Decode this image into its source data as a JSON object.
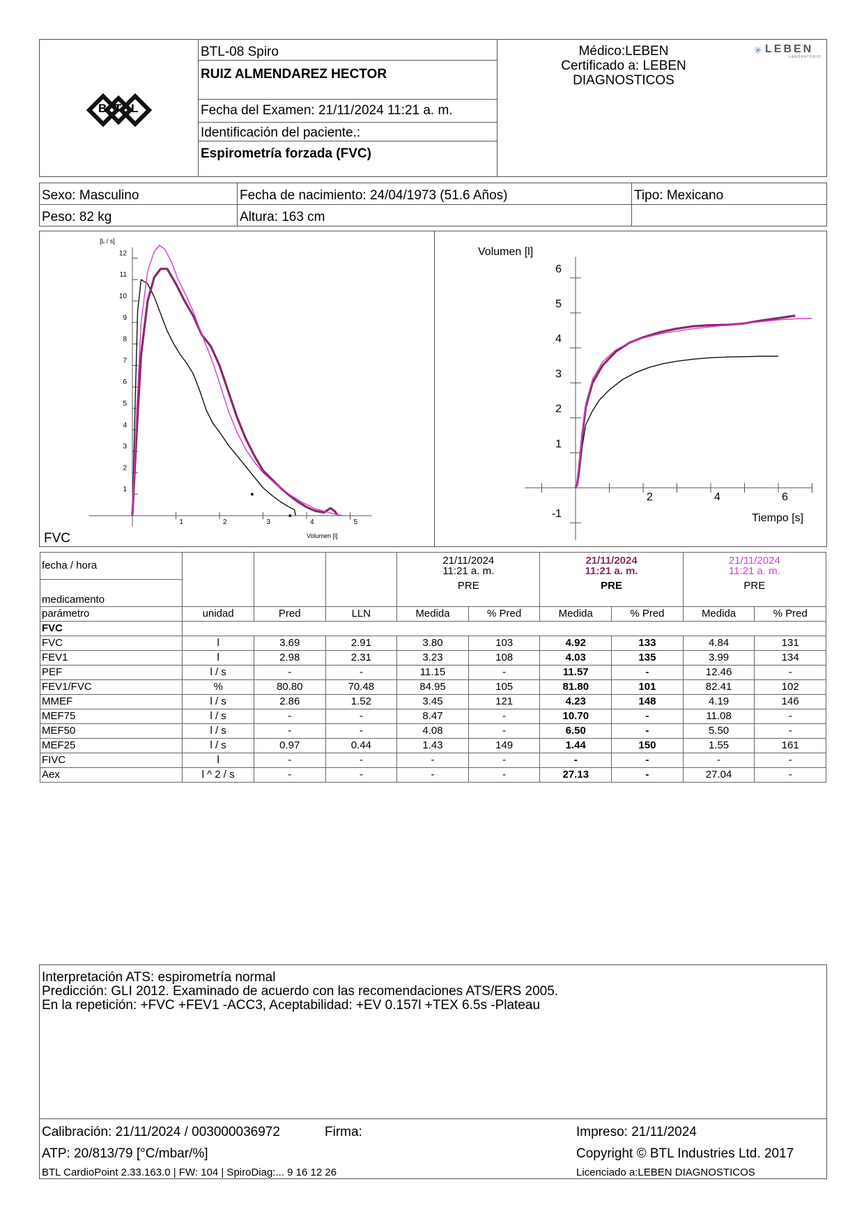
{
  "header": {
    "device": "BTL-08 Spiro",
    "patient_name": "RUIZ ALMENDAREZ HECTOR",
    "exam_date": "Fecha del Examen:  21/11/2024 11:21 a. m.",
    "patient_id": "Identificación del paciente.:",
    "test_type": "Espirometría forzada (FVC)",
    "doctor_line1": "Médico:LEBEN",
    "doctor_line2": "Certificado a: LEBEN",
    "doctor_line3": "DIAGNOSTICOS",
    "brand_logo_text": "LEBEN",
    "brand_logo_sub": "LABORATORIO",
    "logo_letters": [
      "B",
      "T",
      "L"
    ]
  },
  "patient": {
    "sex": "Sexo: Masculino",
    "dob": "Fecha de nacimiento: 24/04/1973 (51.6 Años)",
    "type": "Tipo: Mexicano",
    "weight": "Peso: 82 kg",
    "height": "Altura: 163 cm"
  },
  "colors": {
    "trial1": "#111111",
    "trial2": "#8a2a64",
    "trial3": "#d83cd0"
  },
  "chart_data": [
    {
      "type": "line",
      "title": "FVC",
      "ylabel": "[L / s]",
      "xlabel": "Volumen [l]",
      "xlim": [
        -1,
        5.5
      ],
      "ylim": [
        -0.5,
        12.5
      ],
      "xticks": [
        1,
        2,
        3,
        4,
        5
      ],
      "yticks": [
        1,
        2,
        3,
        4,
        5,
        6,
        7,
        8,
        9,
        10,
        11,
        12
      ],
      "series": [
        {
          "color": "#111111",
          "x": [
            0,
            0.06,
            0.12,
            0.2,
            0.35,
            0.5,
            0.65,
            0.8,
            0.95,
            1.1,
            1.25,
            1.4,
            1.55,
            1.7,
            1.85,
            2.0,
            2.2,
            2.4,
            2.6,
            2.8,
            3.0,
            3.2,
            3.4,
            3.6,
            3.72,
            3.75
          ],
          "y": [
            0,
            5,
            9.5,
            11,
            10.8,
            10.2,
            9.4,
            8.6,
            8.0,
            7.5,
            7.1,
            6.6,
            5.8,
            4.9,
            4.3,
            3.9,
            3.3,
            2.8,
            2.3,
            1.8,
            1.3,
            0.95,
            0.65,
            0.4,
            0.28,
            0.0
          ]
        },
        {
          "color": "#8a2a64",
          "x": [
            0,
            0.1,
            0.2,
            0.35,
            0.5,
            0.65,
            0.8,
            1.0,
            1.2,
            1.4,
            1.6,
            1.8,
            2.0,
            2.2,
            2.4,
            2.6,
            2.8,
            3.0,
            3.2,
            3.4,
            3.6,
            3.8,
            4.0,
            4.2,
            4.4,
            4.55,
            4.65,
            4.7
          ],
          "y": [
            0,
            4,
            7.5,
            10,
            11.1,
            11.5,
            11.5,
            10.8,
            10.0,
            9.3,
            8.4,
            7.9,
            7.0,
            5.8,
            4.6,
            3.6,
            2.8,
            2.1,
            1.7,
            1.3,
            0.95,
            0.65,
            0.4,
            0.22,
            0.15,
            0.35,
            0.2,
            0.05
          ]
        },
        {
          "color": "#d83cd0",
          "x": [
            0,
            0.1,
            0.2,
            0.35,
            0.5,
            0.62,
            0.75,
            0.9,
            1.05,
            1.2,
            1.4,
            1.6,
            1.8,
            2.0,
            2.2,
            2.4,
            2.6,
            2.8,
            3.0,
            3.3,
            3.6,
            3.9,
            4.2,
            4.5,
            4.7,
            4.84
          ],
          "y": [
            0,
            5,
            9.0,
            11.4,
            12.3,
            12.6,
            12.4,
            11.8,
            11.0,
            10.4,
            9.5,
            8.4,
            7.4,
            6.2,
            4.9,
            3.9,
            3.1,
            2.5,
            2.0,
            1.45,
            1.0,
            0.62,
            0.32,
            0.15,
            0.05,
            0.0
          ]
        }
      ]
    },
    {
      "type": "line",
      "ylabel": "Volumen [l]",
      "xlabel": "Tiempo [s]",
      "xlim": [
        -1.5,
        7
      ],
      "ylim": [
        -1.5,
        7
      ],
      "xticks": [
        2,
        4,
        6
      ],
      "yticks": [
        -1,
        1,
        2,
        3,
        4,
        5,
        6
      ],
      "series": [
        {
          "color": "#111111",
          "x": [
            0,
            0.1,
            0.2,
            0.3,
            0.5,
            0.7,
            1.0,
            1.4,
            1.8,
            2.2,
            2.6,
            3.0,
            3.5,
            4.0,
            4.5,
            5.0,
            5.5,
            6.0
          ],
          "y": [
            0,
            0.3,
            1.2,
            1.8,
            2.2,
            2.5,
            2.8,
            3.1,
            3.3,
            3.45,
            3.55,
            3.62,
            3.68,
            3.72,
            3.74,
            3.75,
            3.76,
            3.76
          ]
        },
        {
          "color": "#8a2a64",
          "x": [
            0,
            0.05,
            0.1,
            0.2,
            0.3,
            0.5,
            0.8,
            1.2,
            1.6,
            2.0,
            2.5,
            3.0,
            3.5,
            4.0,
            4.5,
            5.0,
            5.5,
            6.0,
            6.5
          ],
          "y": [
            0,
            0.1,
            0.5,
            1.5,
            2.3,
            3.0,
            3.5,
            3.9,
            4.15,
            4.3,
            4.45,
            4.55,
            4.62,
            4.65,
            4.66,
            4.7,
            4.78,
            4.85,
            4.92
          ]
        },
        {
          "color": "#d83cd0",
          "x": [
            0,
            0.05,
            0.1,
            0.2,
            0.3,
            0.5,
            0.8,
            1.2,
            1.6,
            2.0,
            2.5,
            3.0,
            3.5,
            4.0,
            4.5,
            5.0,
            5.5,
            6.0,
            6.5,
            7.0
          ],
          "y": [
            0,
            0.1,
            0.6,
            1.6,
            2.4,
            3.1,
            3.6,
            3.95,
            4.15,
            4.28,
            4.4,
            4.48,
            4.55,
            4.6,
            4.65,
            4.7,
            4.75,
            4.8,
            4.83,
            4.84
          ]
        }
      ]
    }
  ],
  "results": {
    "label_date": "fecha / hora",
    "label_med": "medicamento",
    "trials": [
      {
        "date": "21/11/2024",
        "time": "11:21 a. m.",
        "med": "PRE"
      },
      {
        "date": "21/11/2024",
        "time": "11:21 a. m.",
        "med": "PRE"
      },
      {
        "date": "21/11/2024",
        "time": "11:21 a. m.",
        "med": "PRE"
      }
    ],
    "columns": [
      "parámetro",
      "unidad",
      "Pred",
      "LLN",
      "Medida",
      "% Pred",
      "Medida",
      "% Pred",
      "Medida",
      "% Pred"
    ],
    "section": "FVC",
    "rows": [
      [
        "FVC",
        "l",
        "3.69",
        "2.91",
        "3.80",
        "103",
        "4.92",
        "133",
        "4.84",
        "131"
      ],
      [
        "FEV1",
        "l",
        "2.98",
        "2.31",
        "3.23",
        "108",
        "4.03",
        "135",
        "3.99",
        "134"
      ],
      [
        "PEF",
        "l / s",
        "-",
        "-",
        "11.15",
        "-",
        "11.57",
        "-",
        "12.46",
        "-"
      ],
      [
        "FEV1/FVC",
        "%",
        "80.80",
        "70.48",
        "84.95",
        "105",
        "81.80",
        "101",
        "82.41",
        "102"
      ],
      [
        "MMEF",
        "l / s",
        "2.86",
        "1.52",
        "3.45",
        "121",
        "4.23",
        "148",
        "4.19",
        "146"
      ],
      [
        "MEF75",
        "l / s",
        "-",
        "-",
        "8.47",
        "-",
        "10.70",
        "-",
        "11.08",
        "-"
      ],
      [
        "MEF50",
        "l / s",
        "-",
        "-",
        "4.08",
        "-",
        "6.50",
        "-",
        "5.50",
        "-"
      ],
      [
        "MEF25",
        "l / s",
        "0.97",
        "0.44",
        "1.43",
        "149",
        "1.44",
        "150",
        "1.55",
        "161"
      ],
      [
        "FIVC",
        "l",
        "-",
        "-",
        "-",
        "-",
        "-",
        "-",
        "-",
        "-"
      ],
      [
        "Aex",
        "l ^ 2 / s",
        "-",
        "-",
        "-",
        "-",
        "27.13",
        "-",
        "27.04",
        "-"
      ]
    ]
  },
  "interpretation": {
    "line1": "Interpretación ATS: espirometría normal",
    "line2": "Predicción: GLI 2012. Examinado de acuerdo con las recomendaciones ATS/ERS 2005.",
    "line3": "En la repetición: +FVC +FEV1 -ACC3, Aceptabilidad: +EV 0.157l +TEX 6.5s -Plateau"
  },
  "footer": {
    "calibration": "Calibración: 21/11/2024 / 003000036972",
    "signature": "Firma:",
    "printed": "Impreso: 21/11/2024",
    "atp": "ATP: 20/813/79 [°C/mbar/%]",
    "copyright": "Copyright © BTL Industries Ltd. 2017",
    "software": "BTL CardioPoint 2.33.163.0 | FW: 104 | SpiroDiag:... 9 16 12 26",
    "license": "Licenciado a:LEBEN DIAGNOSTICOS"
  }
}
